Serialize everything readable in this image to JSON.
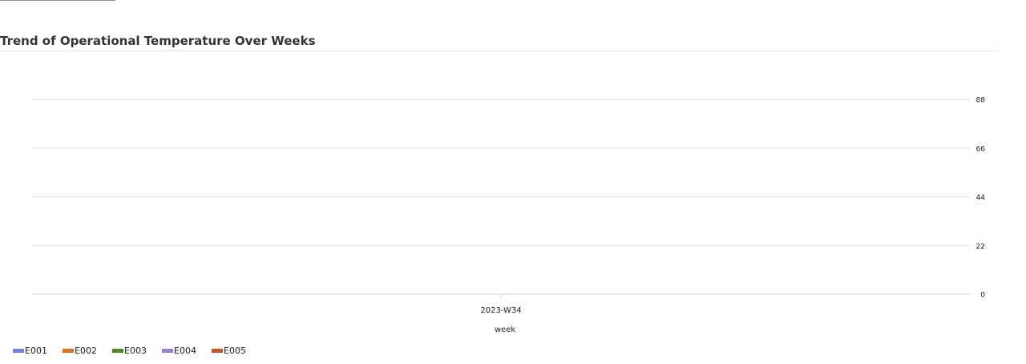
{
  "chart_data": {
    "type": "line",
    "title": "Trend of Operational Temperature Over Weeks",
    "xlabel": "week",
    "ylabel": "",
    "categories": [
      "2023-W34"
    ],
    "yticks": [
      "0",
      "22",
      "44",
      "66",
      "88"
    ],
    "ylim": [
      0,
      88
    ],
    "grid": true,
    "legend_position": "bottom-left",
    "series": [
      {
        "name": "E001",
        "color": "#6f7fef",
        "values": [
          null
        ]
      },
      {
        "name": "E002",
        "color": "#ef6c1a",
        "values": [
          null
        ]
      },
      {
        "name": "E003",
        "color": "#4f8a1f",
        "values": [
          null
        ]
      },
      {
        "name": "E004",
        "color": "#9b79cf",
        "values": [
          null
        ]
      },
      {
        "name": "E005",
        "color": "#c9541f",
        "values": [
          null
        ]
      }
    ]
  }
}
